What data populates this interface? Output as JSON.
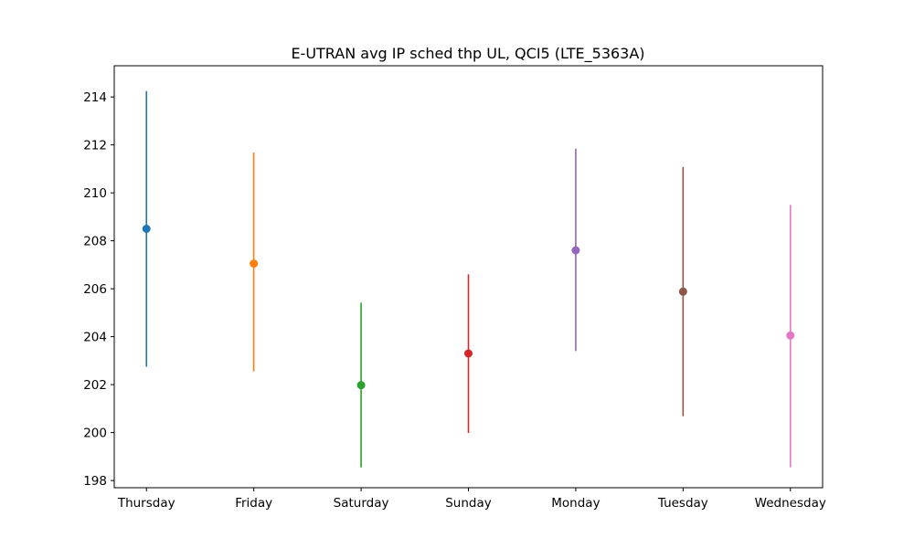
{
  "chart_data": {
    "type": "errorbar",
    "title": "E-UTRAN avg IP sched thp UL, QCI5 (LTE_5363A)",
    "xlabel": "",
    "ylabel": "",
    "categories": [
      "Thursday",
      "Friday",
      "Saturday",
      "Sunday",
      "Monday",
      "Tuesday",
      "Wednesday"
    ],
    "means": [
      208.5,
      207.05,
      201.98,
      203.3,
      207.6,
      205.88,
      204.05
    ],
    "lows": [
      202.75,
      202.55,
      198.55,
      199.98,
      203.4,
      200.68,
      198.55
    ],
    "highs": [
      214.25,
      211.68,
      205.42,
      206.6,
      211.85,
      211.08,
      209.5
    ],
    "colors": [
      "#1f77b4",
      "#ff7f0e",
      "#2ca02c",
      "#d62728",
      "#9467bd",
      "#8c564b",
      "#e377c2"
    ],
    "ylim": [
      197.7,
      215.3
    ],
    "yticks": [
      198,
      200,
      202,
      204,
      206,
      208,
      210,
      212,
      214
    ],
    "grid": false
  }
}
